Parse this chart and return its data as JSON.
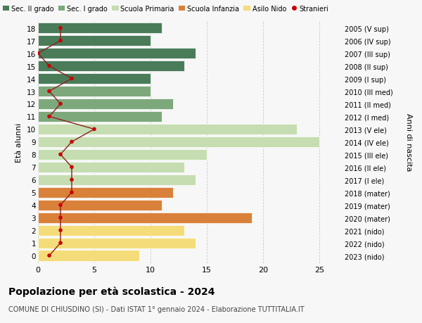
{
  "ages": [
    18,
    17,
    16,
    15,
    14,
    13,
    12,
    11,
    10,
    9,
    8,
    7,
    6,
    5,
    4,
    3,
    2,
    1,
    0
  ],
  "anni_nascita": [
    "2005 (V sup)",
    "2006 (IV sup)",
    "2007 (III sup)",
    "2008 (II sup)",
    "2009 (I sup)",
    "2010 (III med)",
    "2011 (II med)",
    "2012 (I med)",
    "2013 (V ele)",
    "2014 (IV ele)",
    "2015 (III ele)",
    "2016 (II ele)",
    "2017 (I ele)",
    "2018 (mater)",
    "2019 (mater)",
    "2020 (mater)",
    "2021 (nido)",
    "2022 (nido)",
    "2023 (nido)"
  ],
  "bar_values": [
    11,
    10,
    14,
    13,
    10,
    10,
    12,
    11,
    23,
    25,
    15,
    13,
    14,
    12,
    11,
    19,
    13,
    14,
    9
  ],
  "bar_colors": [
    "#4a7c59",
    "#4a7c59",
    "#4a7c59",
    "#4a7c59",
    "#4a7c59",
    "#7da87b",
    "#7da87b",
    "#7da87b",
    "#c5ddb0",
    "#c5ddb0",
    "#c5ddb0",
    "#c5ddb0",
    "#c5ddb0",
    "#d9813a",
    "#d9813a",
    "#d9813a",
    "#f5dc7a",
    "#f5dc7a",
    "#f5dc7a"
  ],
  "stranieri_values": [
    2,
    2,
    0,
    1,
    3,
    1,
    2,
    1,
    5,
    3,
    2,
    3,
    3,
    3,
    2,
    2,
    2,
    2,
    1
  ],
  "title": "Popolazione per età scolastica - 2024",
  "subtitle": "COMUNE DI CHIUSDINO (SI) - Dati ISTAT 1° gennaio 2024 - Elaborazione TUTTITALIA.IT",
  "ylabel_left": "Età alunni",
  "ylabel_right": "Anni di nascita",
  "xlim": [
    0,
    27
  ],
  "xticks": [
    0,
    5,
    10,
    15,
    20,
    25
  ],
  "legend_labels": [
    "Sec. II grado",
    "Sec. I grado",
    "Scuola Primaria",
    "Scuola Infanzia",
    "Asilo Nido",
    "Stranieri"
  ],
  "legend_colors": [
    "#4a7c59",
    "#7da87b",
    "#c5ddb0",
    "#d9813a",
    "#f5dc7a",
    "#cc0000"
  ],
  "bg_color": "#f7f7f7",
  "grid_color": "#cccccc",
  "bar_edgecolor": "white",
  "stranieri_line_color": "#8b2020",
  "stranieri_dot_color": "#cc0000"
}
